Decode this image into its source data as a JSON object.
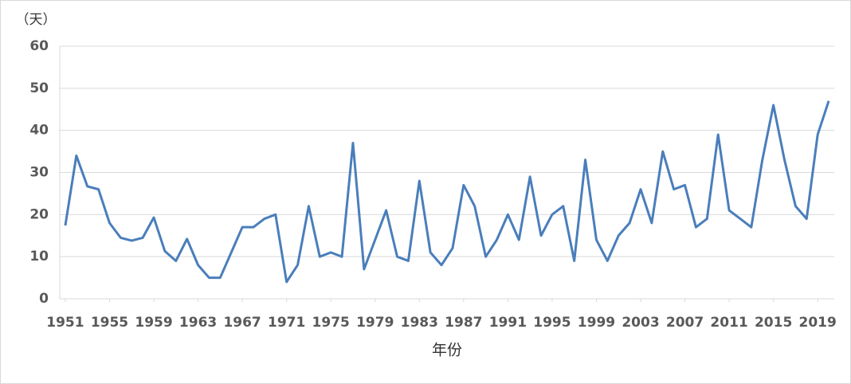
{
  "chart_data": {
    "type": "line",
    "y_label": "（天）",
    "x_label": "年份",
    "x": [
      1951,
      1952,
      1953,
      1954,
      1955,
      1956,
      1957,
      1958,
      1959,
      1960,
      1961,
      1962,
      1963,
      1964,
      1965,
      1966,
      1967,
      1968,
      1969,
      1970,
      1971,
      1972,
      1973,
      1974,
      1975,
      1976,
      1977,
      1978,
      1979,
      1980,
      1981,
      1982,
      1983,
      1984,
      1985,
      1986,
      1987,
      1988,
      1989,
      1990,
      1991,
      1992,
      1993,
      1994,
      1995,
      1996,
      1997,
      1998,
      1999,
      2000,
      2001,
      2002,
      2003,
      2004,
      2005,
      2006,
      2007,
      2008,
      2009,
      2010,
      2011,
      2012,
      2013,
      2014,
      2015,
      2016,
      2017,
      2018,
      2019,
      2020
    ],
    "series": [
      {
        "color": "#4a7ebb",
        "values": [
          17.4,
          34,
          26.7,
          26,
          18,
          14.5,
          13.8,
          14.5,
          19.3,
          11.3,
          9,
          14.2,
          8,
          5,
          5,
          11,
          17,
          17,
          19,
          20,
          4,
          8,
          22,
          10,
          11,
          10,
          37,
          7,
          14,
          21,
          10,
          9,
          28,
          11,
          8,
          12,
          27,
          22,
          10,
          14,
          20,
          14,
          29,
          15,
          20,
          22,
          9,
          33,
          14,
          9,
          15,
          18,
          26,
          18,
          35,
          26,
          27,
          17,
          19,
          39,
          21,
          19,
          17,
          33,
          46,
          33,
          22,
          19,
          39,
          47
        ]
      }
    ],
    "xlim": [
      1950.5,
      2020.5
    ],
    "xticks": [
      1951,
      1955,
      1959,
      1963,
      1967,
      1971,
      1975,
      1979,
      1983,
      1987,
      1991,
      1995,
      1999,
      2003,
      2007,
      2011,
      2015,
      2019
    ],
    "ylim": [
      0,
      60
    ],
    "yticks": [
      0,
      10,
      20,
      30,
      40,
      50,
      60
    ],
    "grid": true
  }
}
